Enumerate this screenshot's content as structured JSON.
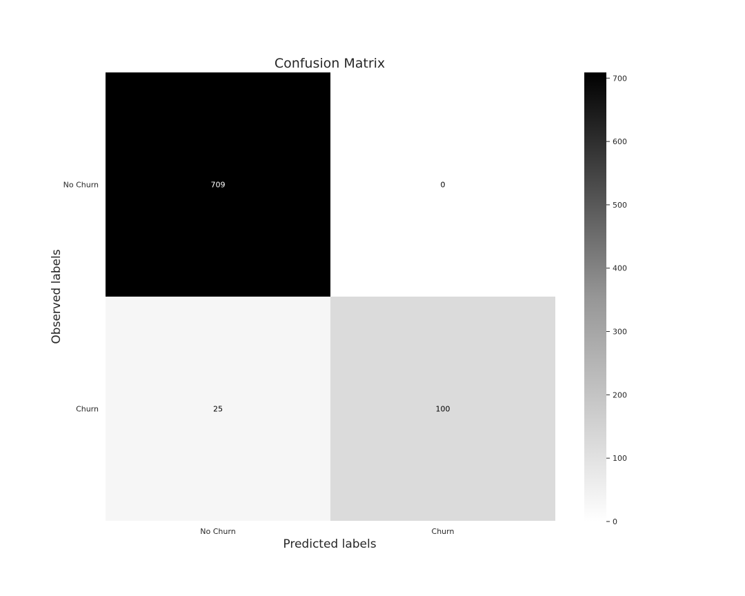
{
  "chart_data": {
    "type": "heatmap",
    "title": "Confusion Matrix",
    "xlabel": "Predicted labels",
    "ylabel": "Observed labels",
    "x_categories": [
      "No Churn",
      "Churn"
    ],
    "y_categories": [
      "No Churn",
      "Churn"
    ],
    "values": [
      [
        709,
        0
      ],
      [
        25,
        100
      ]
    ],
    "colormap": "Greys",
    "colorbar": {
      "vmin": 0,
      "vmax": 709,
      "ticks": [
        0,
        100,
        200,
        300,
        400,
        500,
        600,
        700
      ]
    },
    "grid": false
  }
}
